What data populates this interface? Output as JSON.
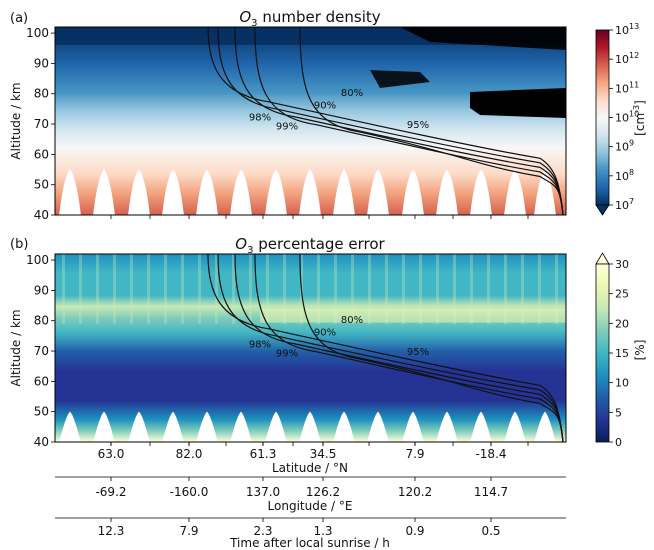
{
  "chart_data": [
    {
      "type": "heatmap",
      "panel_label": "(a)",
      "title_prefix": "O",
      "title_sub": "3",
      "title_suffix": " number density",
      "ylabel": "Altitude / km",
      "ylim": [
        40,
        102
      ],
      "yticks": [
        40,
        50,
        60,
        70,
        80,
        90,
        100
      ],
      "colorbar": {
        "scale": "log",
        "range": [
          10000000.0,
          10000000000000.0
        ],
        "ticks": [
          {
            "base": "10",
            "exp": "13"
          },
          {
            "base": "10",
            "exp": "12"
          },
          {
            "base": "10",
            "exp": "11"
          },
          {
            "base": "10",
            "exp": "10"
          },
          {
            "base": "10",
            "exp": "9"
          },
          {
            "base": "10",
            "exp": "8"
          },
          {
            "base": "10",
            "exp": "7"
          }
        ],
        "label": "[cm",
        "label_exp": "-3",
        "label_close": "]",
        "colors": [
          "#053061",
          "#2166ac",
          "#4393c3",
          "#92c5de",
          "#d1e5f0",
          "#f7f7f7",
          "#fddbc7",
          "#f4a582",
          "#d6604d",
          "#b2182b",
          "#67001f"
        ]
      },
      "contour_labels": [
        "80%",
        "90%",
        "98%",
        "99%",
        "95%"
      ]
    },
    {
      "type": "heatmap",
      "panel_label": "(b)",
      "title_prefix": "O",
      "title_sub": "3",
      "title_suffix": " percentage error",
      "ylabel": "Altitude / km",
      "ylim": [
        40,
        102
      ],
      "yticks": [
        40,
        50,
        60,
        70,
        80,
        90,
        100
      ],
      "colorbar": {
        "scale": "linear",
        "range": [
          0,
          30
        ],
        "ticks": [
          "30",
          "25",
          "20",
          "15",
          "10",
          "5",
          "0"
        ],
        "label": "[%]",
        "colors": [
          "#081d58",
          "#253494",
          "#225ea8",
          "#1d91c0",
          "#41b6c4",
          "#7fcdbb",
          "#c7e9b4",
          "#edf8b1",
          "#ffffd9"
        ]
      },
      "contour_labels": [
        "80%",
        "90%",
        "98%",
        "99%",
        "95%"
      ]
    }
  ],
  "axes": {
    "latitude": {
      "ticks": [
        "63.0",
        "82.0",
        "61.3",
        "34.5",
        "7.9",
        "-18.4"
      ],
      "label": "Latitude / °N"
    },
    "longitude": {
      "ticks": [
        "-69.2",
        "-160.0",
        "137.0",
        "126.2",
        "120.2",
        "114.7"
      ],
      "label": "Longitude / °E"
    },
    "time": {
      "ticks": [
        "12.3",
        "7.9",
        "2.3",
        "1.3",
        "0.9",
        "0.5"
      ],
      "label": "Time after local sunrise / h"
    }
  }
}
